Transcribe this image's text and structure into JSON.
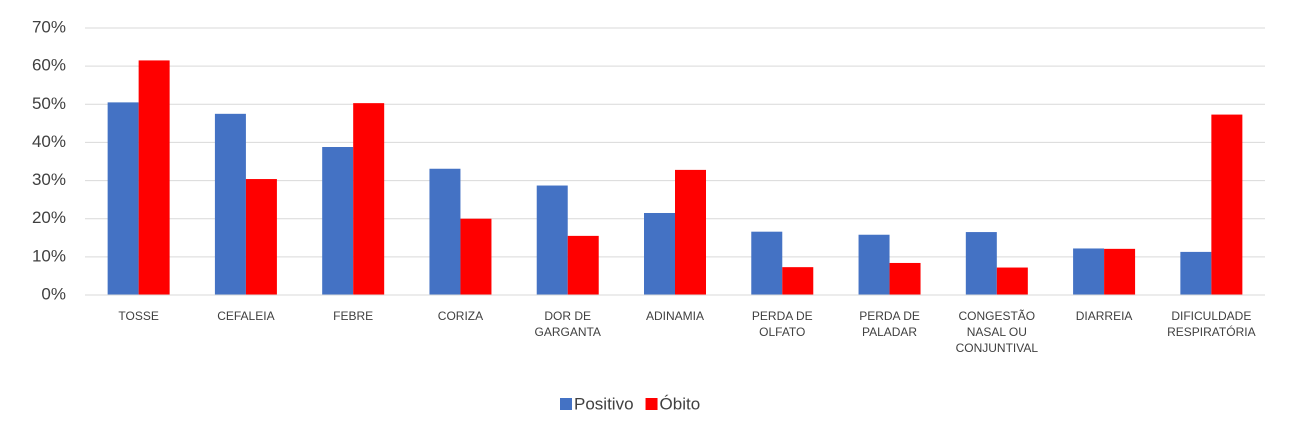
{
  "chart_data": {
    "type": "bar",
    "categories": [
      "TOSSE",
      "CEFALEIA",
      "FEBRE",
      "CORIZA",
      "DOR DE GARGANTA",
      "ADINAMIA",
      "PERDA DE OLFATO",
      "PERDA DE PALADAR",
      "CONGESTÃO NASAL OU CONJUNTIVAL",
      "DIARREIA",
      "DIFICULDADE RESPIRATÓRIA"
    ],
    "series": [
      {
        "name": "Positivo",
        "color": "#4472c4",
        "values": [
          50.5,
          47.5,
          38.8,
          33.1,
          28.7,
          21.5,
          16.6,
          15.8,
          16.5,
          12.2,
          11.3
        ]
      },
      {
        "name": "Óbito",
        "color": "#ff0000",
        "values": [
          61.5,
          30.4,
          50.3,
          20.0,
          15.5,
          32.8,
          7.3,
          8.4,
          7.2,
          12.1,
          47.3
        ]
      }
    ],
    "ylim": [
      0,
      70
    ],
    "yticks": [
      {
        "value": 0,
        "label": "0%"
      },
      {
        "value": 10,
        "label": "10%"
      },
      {
        "value": 20,
        "label": "20%"
      },
      {
        "value": 30,
        "label": "30%"
      },
      {
        "value": 40,
        "label": "40%"
      },
      {
        "value": 50,
        "label": "50%"
      },
      {
        "value": 60,
        "label": "60%"
      },
      {
        "value": 70,
        "label": "70%"
      }
    ],
    "grid": true,
    "legend": "bottom"
  }
}
